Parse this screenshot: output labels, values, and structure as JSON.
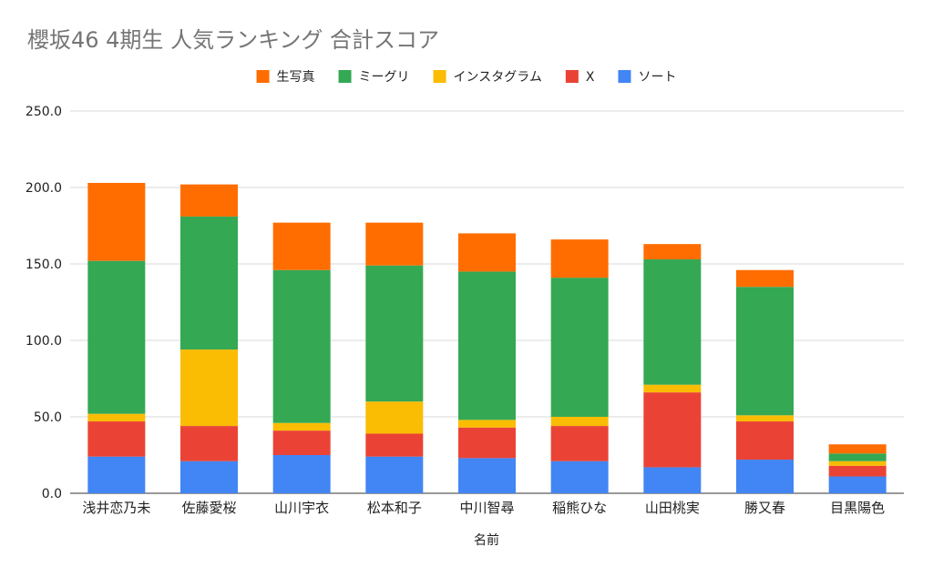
{
  "chart_data": {
    "type": "bar",
    "stacked": true,
    "title": "櫻坂46 4期生 人気ランキング 合計スコア",
    "xlabel": "名前",
    "ylabel": "",
    "ylim": [
      0,
      250
    ],
    "yticks": [
      "0.0",
      "50.0",
      "100.0",
      "150.0",
      "200.0",
      "250.0"
    ],
    "grid": true,
    "legend": "top",
    "categories": [
      "浅井恋乃未",
      "佐藤愛桜",
      "山川宇衣",
      "松本和子",
      "中川智尋",
      "稲熊ひな",
      "山田桃実",
      "勝又春",
      "目黒陽色"
    ],
    "series": [
      {
        "name": "ソート",
        "color": "#4285F4",
        "values": [
          24,
          21,
          25,
          24,
          23,
          21,
          17,
          22,
          11
        ]
      },
      {
        "name": "X",
        "color": "#EA4335",
        "values": [
          23,
          23,
          16,
          15,
          20,
          23,
          49,
          25,
          7
        ]
      },
      {
        "name": "インスタグラム",
        "color": "#FBBC04",
        "values": [
          5,
          50,
          5,
          21,
          5,
          6,
          5,
          4,
          3
        ]
      },
      {
        "name": "ミーグリ",
        "color": "#34A853",
        "values": [
          100,
          87,
          100,
          89,
          97,
          91,
          82,
          84,
          5
        ]
      },
      {
        "name": "生写真",
        "color": "#FF6D01",
        "values": [
          51,
          21,
          31,
          28,
          25,
          25,
          10,
          11,
          6
        ]
      }
    ],
    "legend_order": [
      "生写真",
      "ミーグリ",
      "インスタグラム",
      "X",
      "ソート"
    ]
  }
}
